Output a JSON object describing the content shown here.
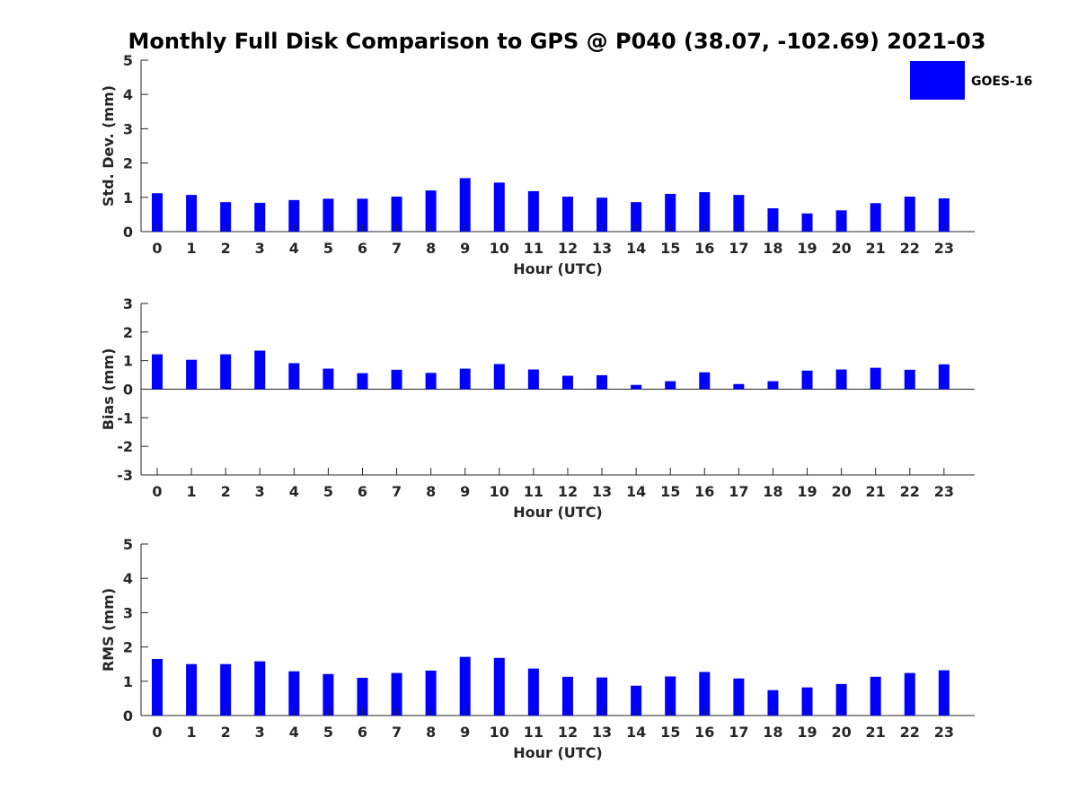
{
  "title": "Monthly Full Disk Comparison to GPS @ P040 (38.07, -102.69) 2021-03",
  "legend": {
    "label": "GOES-16",
    "color": "#0000ff"
  },
  "chart_data": [
    {
      "type": "bar",
      "xlabel": "Hour (UTC)",
      "ylabel": "Std. Dev. (mm)",
      "ylim": [
        0,
        5
      ],
      "yticks": [
        0,
        1,
        2,
        3,
        4,
        5
      ],
      "categories": [
        "0",
        "1",
        "2",
        "3",
        "4",
        "5",
        "6",
        "7",
        "8",
        "9",
        "10",
        "11",
        "12",
        "13",
        "14",
        "15",
        "16",
        "17",
        "18",
        "19",
        "20",
        "21",
        "22",
        "23"
      ],
      "series": [
        {
          "name": "GOES-16",
          "color": "#0000ff",
          "values": [
            1.12,
            1.07,
            0.86,
            0.84,
            0.92,
            0.96,
            0.96,
            1.02,
            1.2,
            1.56,
            1.43,
            1.18,
            1.02,
            0.99,
            0.86,
            1.1,
            1.15,
            1.07,
            0.68,
            0.53,
            0.62,
            0.83,
            1.02,
            0.97
          ]
        }
      ],
      "grid": false,
      "legend_position": "top-right"
    },
    {
      "type": "bar",
      "xlabel": "Hour (UTC)",
      "ylabel": "Bias (mm)",
      "ylim": [
        -3,
        3
      ],
      "yticks": [
        -3,
        -2,
        -1,
        0,
        1,
        2,
        3
      ],
      "categories": [
        "0",
        "1",
        "2",
        "3",
        "4",
        "5",
        "6",
        "7",
        "8",
        "9",
        "10",
        "11",
        "12",
        "13",
        "14",
        "15",
        "16",
        "17",
        "18",
        "19",
        "20",
        "21",
        "22",
        "23"
      ],
      "series": [
        {
          "name": "GOES-16",
          "color": "#0000ff",
          "values": [
            1.22,
            1.03,
            1.22,
            1.35,
            0.91,
            0.72,
            0.56,
            0.68,
            0.57,
            0.72,
            0.88,
            0.69,
            0.47,
            0.49,
            0.15,
            0.28,
            0.59,
            0.18,
            0.28,
            0.65,
            0.69,
            0.75,
            0.68,
            0.87
          ]
        }
      ],
      "grid": false
    },
    {
      "type": "bar",
      "xlabel": "Hour (UTC)",
      "ylabel": "RMS (mm)",
      "ylim": [
        0,
        5
      ],
      "yticks": [
        0,
        1,
        2,
        3,
        4,
        5
      ],
      "categories": [
        "0",
        "1",
        "2",
        "3",
        "4",
        "5",
        "6",
        "7",
        "8",
        "9",
        "10",
        "11",
        "12",
        "13",
        "14",
        "15",
        "16",
        "17",
        "18",
        "19",
        "20",
        "21",
        "22",
        "23"
      ],
      "series": [
        {
          "name": "GOES-16",
          "color": "#0000ff",
          "values": [
            1.65,
            1.5,
            1.5,
            1.58,
            1.29,
            1.21,
            1.1,
            1.24,
            1.31,
            1.71,
            1.68,
            1.37,
            1.13,
            1.11,
            0.87,
            1.14,
            1.27,
            1.08,
            0.74,
            0.82,
            0.92,
            1.13,
            1.24,
            1.32
          ]
        }
      ],
      "grid": false
    }
  ]
}
